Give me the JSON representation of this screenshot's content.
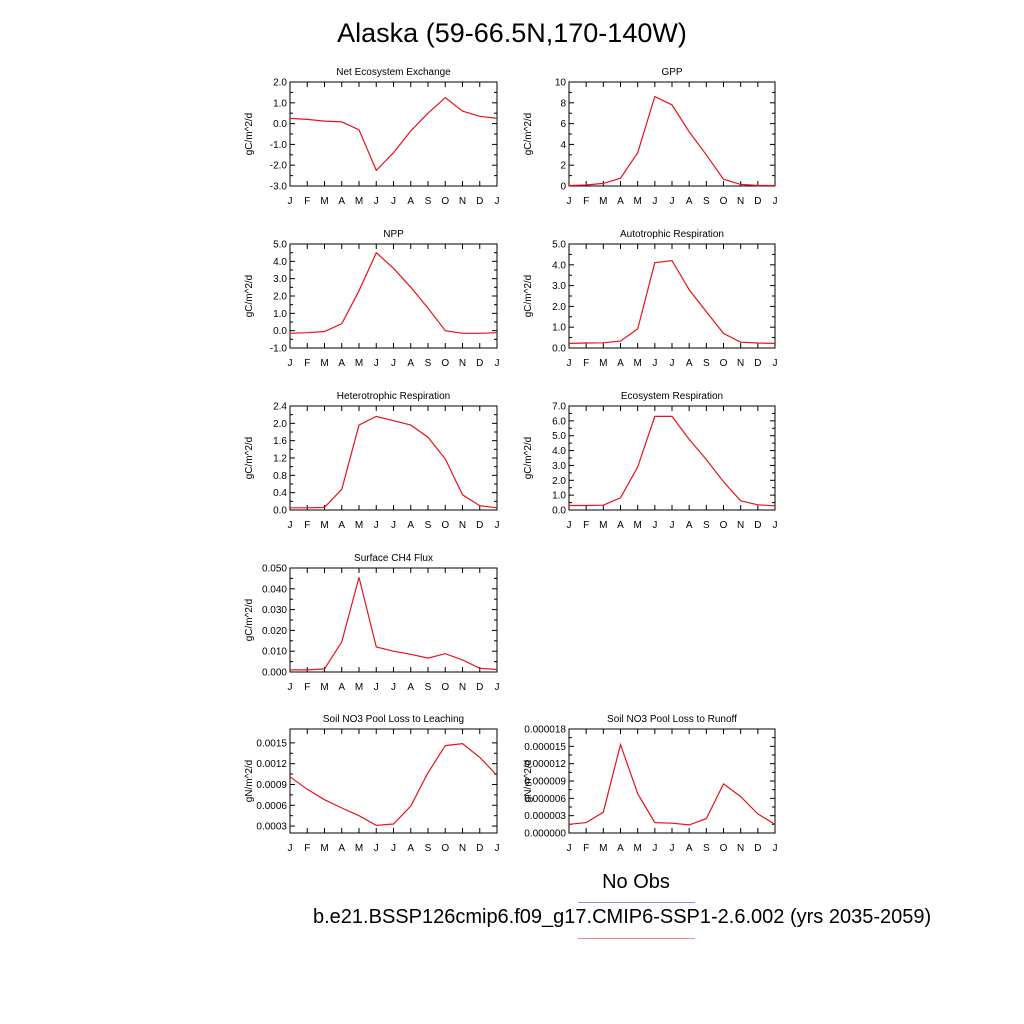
{
  "title": "Alaska (59-66.5N,170-140W)",
  "months": [
    "J",
    "F",
    "M",
    "A",
    "M",
    "J",
    "J",
    "A",
    "S",
    "O",
    "N",
    "D",
    "J"
  ],
  "line_color": "#e8121a",
  "chart_data": [
    {
      "type": "line",
      "title": "Net Ecosystem Exchange",
      "ylabel": "gC/m^2/d",
      "ylim": [
        -3.0,
        2.0
      ],
      "yticks": [
        "-3.0",
        "-2.0",
        "-1.0",
        "0.0",
        "1.0",
        "2.0"
      ],
      "yvals": [
        -3,
        -2,
        -1,
        0,
        1,
        2
      ],
      "values": [
        0.25,
        0.2,
        0.12,
        0.08,
        -0.3,
        -2.25,
        -1.4,
        -0.35,
        0.5,
        1.25,
        0.6,
        0.35,
        0.25
      ]
    },
    {
      "type": "line",
      "title": "GPP",
      "ylabel": "gC/m^2/d",
      "ylim": [
        0,
        10
      ],
      "yticks": [
        "0",
        "2",
        "4",
        "6",
        "8",
        "10"
      ],
      "yvals": [
        0,
        2,
        4,
        6,
        8,
        10
      ],
      "values": [
        0.05,
        0.1,
        0.25,
        0.75,
        3.2,
        8.6,
        7.8,
        5.2,
        3.0,
        0.65,
        0.15,
        0.05,
        0.05
      ]
    },
    {
      "type": "line",
      "title": "NPP",
      "ylabel": "gC/m^2/d",
      "ylim": [
        -1.0,
        5.0
      ],
      "yticks": [
        "-1.0",
        "0.0",
        "1.0",
        "2.0",
        "3.0",
        "4.0",
        "5.0"
      ],
      "yvals": [
        -1,
        0,
        1,
        2,
        3,
        4,
        5
      ],
      "values": [
        -0.15,
        -0.12,
        -0.05,
        0.4,
        2.3,
        4.5,
        3.6,
        2.5,
        1.3,
        0.0,
        -0.15,
        -0.15,
        -0.12
      ]
    },
    {
      "type": "line",
      "title": "Autotrophic Respiration",
      "ylabel": "gC/m^2/d",
      "ylim": [
        0,
        5.0
      ],
      "yticks": [
        "0.0",
        "1.0",
        "2.0",
        "3.0",
        "4.0",
        "5.0"
      ],
      "yvals": [
        0,
        1,
        2,
        3,
        4,
        5
      ],
      "values": [
        0.22,
        0.24,
        0.25,
        0.33,
        0.92,
        4.1,
        4.2,
        2.8,
        1.75,
        0.7,
        0.28,
        0.24,
        0.22
      ]
    },
    {
      "type": "line",
      "title": "Heterotrophic Respiration",
      "ylabel": "gC/m^2/d",
      "ylim": [
        0,
        2.4
      ],
      "yticks": [
        "0.0",
        "0.4",
        "0.8",
        "1.2",
        "1.6",
        "2.0",
        "2.4"
      ],
      "yvals": [
        0,
        0.4,
        0.8,
        1.2,
        1.6,
        2.0,
        2.4
      ],
      "values": [
        0.05,
        0.05,
        0.06,
        0.48,
        1.96,
        2.16,
        2.06,
        1.96,
        1.68,
        1.18,
        0.35,
        0.1,
        0.05
      ]
    },
    {
      "type": "line",
      "title": "Ecosystem Respiration",
      "ylabel": "gC/m^2/d",
      "ylim": [
        0,
        7.0
      ],
      "yticks": [
        "0.0",
        "1.0",
        "2.0",
        "3.0",
        "4.0",
        "5.0",
        "6.0",
        "7.0"
      ],
      "yvals": [
        0,
        1,
        2,
        3,
        4,
        5,
        6,
        7
      ],
      "values": [
        0.3,
        0.3,
        0.32,
        0.82,
        2.9,
        6.3,
        6.3,
        4.75,
        3.4,
        1.9,
        0.62,
        0.35,
        0.28
      ]
    },
    {
      "type": "line",
      "title": "Surface CH4 Flux",
      "ylabel": "gC/m^2/d",
      "ylim": [
        0,
        0.05
      ],
      "yticks": [
        "0.000",
        "0.010",
        "0.020",
        "0.030",
        "0.040",
        "0.050"
      ],
      "yvals": [
        0,
        0.01,
        0.02,
        0.03,
        0.04,
        0.05
      ],
      "values": [
        0.001,
        0.001,
        0.0015,
        0.0145,
        0.0455,
        0.012,
        0.01,
        0.0085,
        0.0067,
        0.0088,
        0.0058,
        0.0018,
        0.0012
      ]
    },
    {
      "type": "line",
      "title": "Soil NO3 Pool Loss to Leaching",
      "ylabel": "gN/m^2/d",
      "ylim": [
        0.0002,
        0.0017
      ],
      "yticks": [
        "0.0003",
        "0.0006",
        "0.0009",
        "0.0012",
        "0.0015"
      ],
      "yvals": [
        0.0003,
        0.0006,
        0.0009,
        0.0012,
        0.0015
      ],
      "values": [
        0.00101,
        0.00083,
        0.00068,
        0.00056,
        0.00045,
        0.00031,
        0.00033,
        0.00059,
        0.00107,
        0.00146,
        0.00149,
        0.00129,
        0.00103
      ]
    },
    {
      "type": "line",
      "title": "Soil NO3 Pool Loss to Runoff",
      "ylabel": "gN/m^2/d",
      "ylim": [
        0,
        1.8e-05
      ],
      "yticks": [
        "0.000000",
        "0.000003",
        "0.000006",
        "0.000009",
        "0.000012",
        "0.000015",
        "0.000018"
      ],
      "yvals": [
        0,
        3e-06,
        6e-06,
        9e-06,
        1.2e-05,
        1.5e-05,
        1.8e-05
      ],
      "values": [
        1.5e-06,
        1.8e-06,
        3.6e-06,
        1.53e-05,
        6.8e-06,
        1.8e-06,
        1.7e-06,
        1.4e-06,
        2.5e-06,
        8.5e-06,
        6.3e-06,
        3.3e-06,
        1.5e-06
      ]
    }
  ],
  "legend": {
    "obs_label": "No Obs",
    "case_label": "b.e21.BSSP126cmip6.f09_g17.CMIP6-SSP1-2.6.002 (yrs 2035-2059)"
  }
}
